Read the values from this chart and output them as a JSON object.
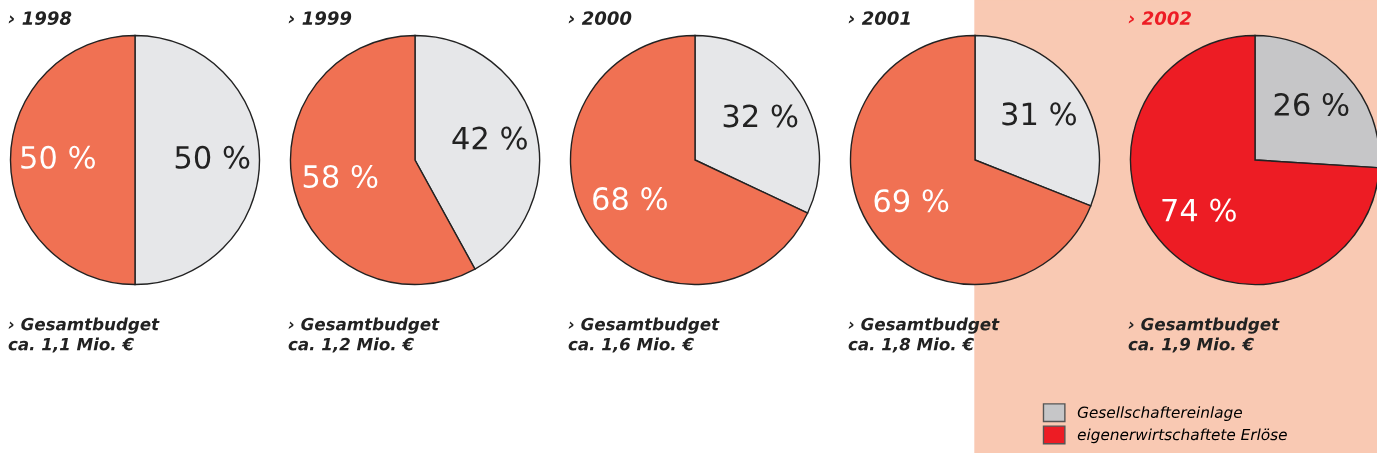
{
  "chart_data": [
    {
      "type": "pie",
      "title": "› 1998",
      "categories": [
        null,
        null
      ],
      "values": [
        50,
        50
      ],
      "colors": [
        "#e6e7e9",
        "#f07153"
      ],
      "value_labels": [
        "50 %",
        "50 %"
      ],
      "annotations": [
        "› Gesamtbudget\nca. 1,1 Mio. €"
      ]
    },
    {
      "type": "pie",
      "title": "› 1999",
      "categories": [
        null,
        null
      ],
      "values": [
        42,
        58
      ],
      "colors": [
        "#e6e7e9",
        "#f07153"
      ],
      "value_labels": [
        "42 %",
        "58 %"
      ],
      "annotations": [
        "› Gesamtbudget\nca. 1,2 Mio. €"
      ]
    },
    {
      "type": "pie",
      "title": "› 2000",
      "categories": [
        null,
        null
      ],
      "values": [
        32,
        68
      ],
      "colors": [
        "#e6e7e9",
        "#f07153"
      ],
      "value_labels": [
        "32 %",
        "68 %"
      ],
      "annotations": [
        "› Gesamtbudget\nca. 1,6 Mio. €"
      ]
    },
    {
      "type": "pie",
      "title": "› 2001",
      "categories": [
        null,
        null
      ],
      "values": [
        31,
        69
      ],
      "colors": [
        "#e6e7e9",
        "#f07153"
      ],
      "value_labels": [
        "31 %",
        "69 %"
      ],
      "annotations": [
        "› Gesamtbudget\nca. 1,8 Mio. €"
      ]
    },
    {
      "type": "pie",
      "title": "› 2002",
      "categories": [
        "Gesellschaftereinlage",
        "eigenerwirtschaftete Erlöse"
      ],
      "values": [
        26,
        74
      ],
      "colors": [
        "#c6c6c8",
        "#ed1c24"
      ],
      "value_labels": [
        "26 %",
        "74 %"
      ],
      "annotations": [
        "› Gesamtbudget\nca. 1,9 Mio. €"
      ],
      "legend": "bottom left"
    }
  ]
}
